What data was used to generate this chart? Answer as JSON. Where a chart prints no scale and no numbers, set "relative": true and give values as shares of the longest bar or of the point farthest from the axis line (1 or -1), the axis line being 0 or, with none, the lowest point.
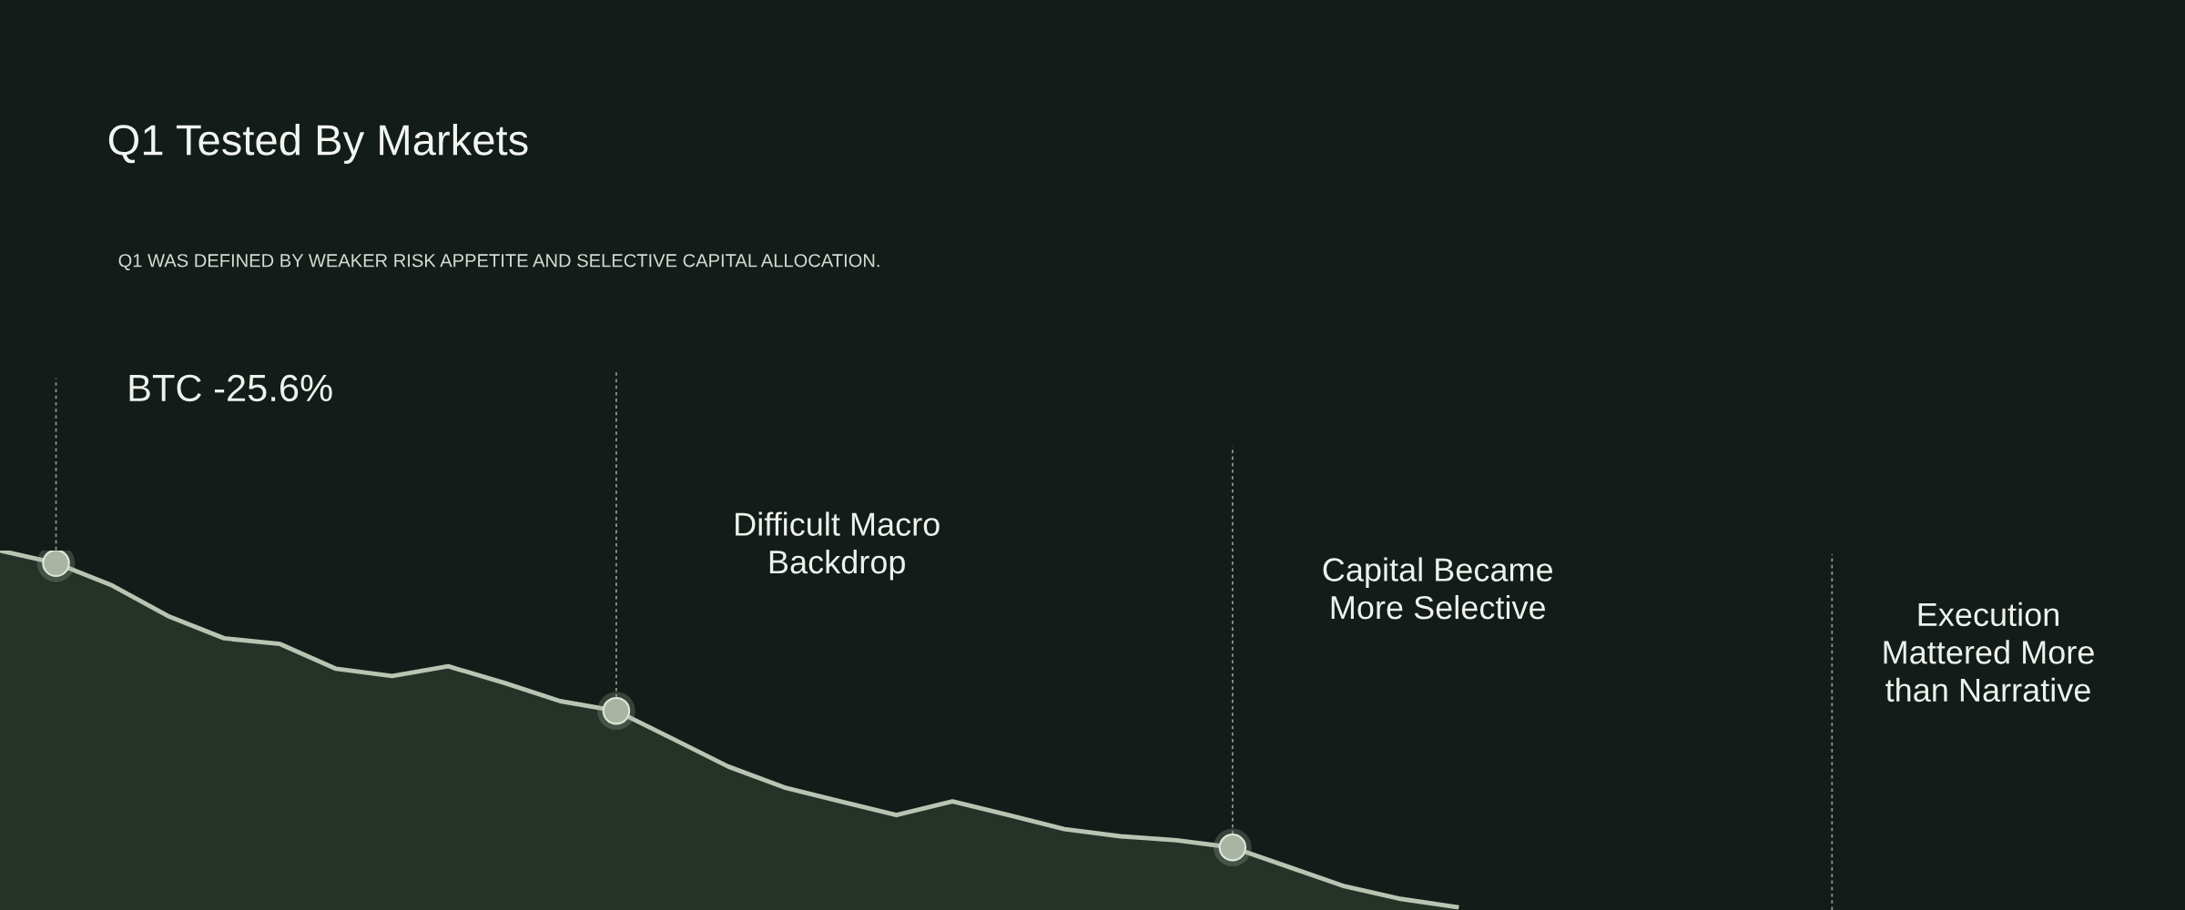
{
  "chart_data": {
    "type": "area",
    "title": "Q1 Tested By Markets",
    "subtitle": "Q1 WAS DEFINED BY WEAKER RISK APPETITE AND SELECTIVE CAPITAL ALLOCATION.",
    "relative": true,
    "color": "#b9c4b3",
    "categories": [
      null,
      null,
      null,
      null,
      null,
      null,
      null,
      null,
      null,
      null,
      null,
      null,
      null,
      null,
      null,
      null,
      null,
      null,
      null,
      null,
      null,
      null,
      null,
      null,
      null,
      null,
      null,
      null,
      null,
      null,
      null,
      null,
      null,
      null,
      null,
      null,
      null,
      null,
      null,
      null
    ],
    "values": [
      1.0,
      0.965,
      0.903,
      0.818,
      0.756,
      0.74,
      0.671,
      0.651,
      0.678,
      0.632,
      0.581,
      0.554,
      0.477,
      0.399,
      0.341,
      0.302,
      0.264,
      0.302,
      0.264,
      0.225,
      0.205,
      0.194,
      0.174,
      0.12,
      0.066,
      0.031,
      0.008,
      null,
      null,
      null,
      null,
      null,
      null,
      null,
      null,
      null,
      null,
      null,
      null,
      null
    ],
    "annotations": [
      "BTC -25.6%",
      "Difficult Macro\nBackdrop",
      "Capital Became\nMore Selective",
      "Execution\nMattered More\nthan Narrative"
    ]
  }
}
